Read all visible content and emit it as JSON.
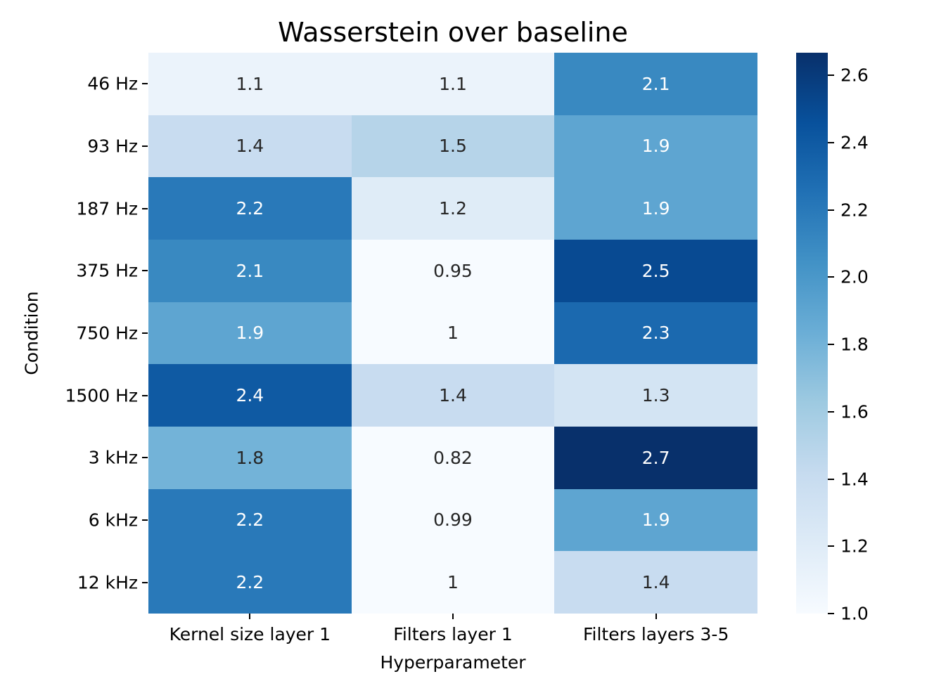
{
  "page": {
    "background": "#ffffff"
  },
  "chart_data": {
    "type": "heatmap",
    "title": "Wasserstein over baseline",
    "xlabel": "Hyperparameter",
    "ylabel": "Condition",
    "x_categories": [
      "Kernel size layer 1",
      "Filters layer 1",
      "Filters layers 3-5"
    ],
    "y_categories": [
      "46 Hz",
      "93 Hz",
      "187 Hz",
      "375 Hz",
      "750 Hz",
      "1500 Hz",
      "3 kHz",
      "6 kHz",
      "12 kHz"
    ],
    "values": [
      [
        1.1,
        1.1,
        2.1
      ],
      [
        1.4,
        1.5,
        1.9
      ],
      [
        2.2,
        1.2,
        1.9
      ],
      [
        2.1,
        0.95,
        2.5
      ],
      [
        1.9,
        1.0,
        2.3
      ],
      [
        2.4,
        1.4,
        1.3
      ],
      [
        1.8,
        0.82,
        2.7
      ],
      [
        2.2,
        0.99,
        1.9
      ],
      [
        2.2,
        1.0,
        1.4
      ]
    ],
    "cell_labels": [
      [
        "1.1",
        "1.1",
        "2.1"
      ],
      [
        "1.4",
        "1.5",
        "1.9"
      ],
      [
        "2.2",
        "1.2",
        "1.9"
      ],
      [
        "2.1",
        "0.95",
        "2.5"
      ],
      [
        "1.9",
        "1",
        "2.3"
      ],
      [
        "2.4",
        "1.4",
        "1.3"
      ],
      [
        "1.8",
        "0.82",
        "2.7"
      ],
      [
        "2.2",
        "0.99",
        "1.9"
      ],
      [
        "2.2",
        "1",
        "1.4"
      ]
    ],
    "color_scale": {
      "colormap": "Blues",
      "vmin": 1.0,
      "vmax": 2.667,
      "anchors": [
        "#f7fbff",
        "#deebf7",
        "#c6dbef",
        "#9ecae1",
        "#6baed6",
        "#4292c6",
        "#2171b5",
        "#08519c",
        "#08306b"
      ],
      "white_text_threshold": 0.5
    },
    "annotation_colors": {
      "dark": "#262626",
      "light": "#ffffff"
    },
    "colorbar": {
      "tick_values": [
        1.0,
        1.2,
        1.4,
        1.6,
        1.8,
        2.0,
        2.2,
        2.4,
        2.6
      ],
      "tick_labels": [
        "1.0",
        "1.2",
        "1.4",
        "1.6",
        "1.8",
        "2.0",
        "2.2",
        "2.4",
        "2.6"
      ],
      "position": "right",
      "grid": false
    }
  }
}
